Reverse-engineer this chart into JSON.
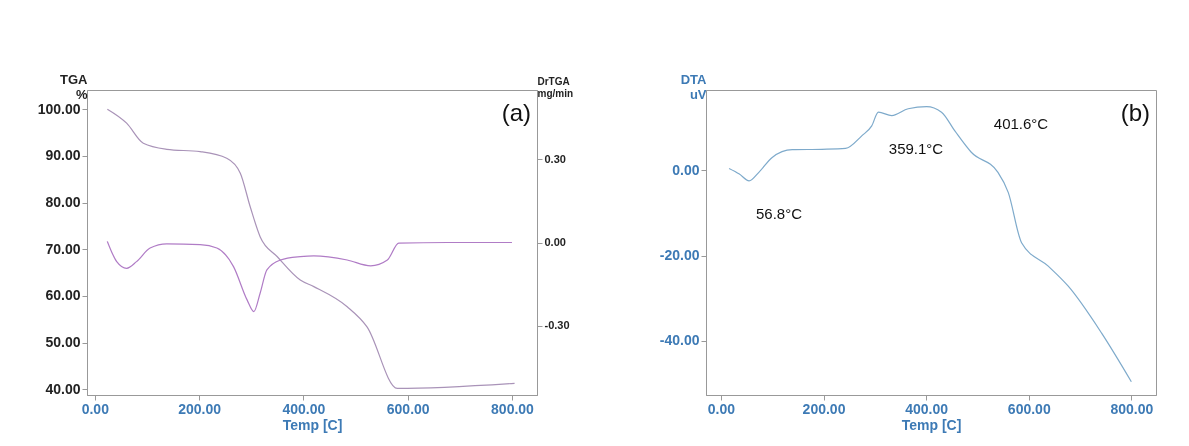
{
  "chart_data": [
    {
      "type": "line",
      "xlabel": "Temp [C]",
      "ylabel": "TGA\n%",
      "y2label": "DrTGA\nmg/min",
      "annotations": [
        "(a)"
      ],
      "xlim": [
        -15,
        848
      ],
      "xticks": [
        {
          "value": 0,
          "label": "0.00"
        },
        {
          "value": 200,
          "label": "200.00"
        },
        {
          "value": 400,
          "label": "400.00"
        },
        {
          "value": 600,
          "label": "600.00"
        },
        {
          "value": 800,
          "label": "800.00"
        }
      ],
      "ylim": [
        38.8,
        104.1
      ],
      "yticks": [
        {
          "value": 40,
          "label": "40.00"
        },
        {
          "value": 50,
          "label": "50.00"
        },
        {
          "value": 60,
          "label": "60.00"
        },
        {
          "value": 70,
          "label": "70.00"
        },
        {
          "value": 80,
          "label": "80.00"
        },
        {
          "value": 90,
          "label": "90.00"
        },
        {
          "value": 100,
          "label": "100.00"
        }
      ],
      "y2lim": [
        -0.55,
        0.55
      ],
      "y2ticks": [
        {
          "value": -0.3,
          "label": "-0.30"
        },
        {
          "value": 0,
          "label": "0.00"
        },
        {
          "value": 0.3,
          "label": "0.30"
        }
      ],
      "series": [
        {
          "color": "#a993b8",
          "x": [
            24,
            61,
            93,
            138,
            202,
            253,
            279,
            298,
            317,
            350,
            394,
            420,
            484,
            522,
            580,
            805
          ],
          "values": [
            100,
            97,
            92.7,
            91.4,
            90.9,
            89.5,
            86.3,
            79.1,
            72.7,
            68.4,
            63.4,
            62.0,
            57.7,
            53.4,
            40.2,
            41.3
          ]
        },
        {
          "color": "#b07cc6",
          "axis": "y2",
          "x": [
            24,
            42,
            61,
            80,
            106,
            138,
            202,
            234,
            266,
            292,
            305,
            317,
            330,
            356,
            394,
            420,
            484,
            529,
            561,
            583,
            676,
            800
          ],
          "values": [
            0.004,
            -0.069,
            -0.093,
            -0.069,
            -0.02,
            -0.005,
            -0.008,
            -0.02,
            -0.087,
            -0.207,
            -0.249,
            -0.183,
            -0.099,
            -0.063,
            -0.051,
            -0.048,
            -0.063,
            -0.084,
            -0.063,
            -0.002,
            0,
            0
          ]
        }
      ]
    },
    {
      "type": "line",
      "xlabel": "Temp [C]",
      "ylabel": "DTA\nuV",
      "annotations": [
        "(b)",
        "56.8°C",
        "359.1°C",
        "401.6°C"
      ],
      "xlim": [
        -29,
        848
      ],
      "xticks": [
        {
          "value": 0,
          "label": "0.00"
        },
        {
          "value": 200,
          "label": "200.00"
        },
        {
          "value": 400,
          "label": "400.00"
        },
        {
          "value": 600,
          "label": "600.00"
        },
        {
          "value": 800,
          "label": "800.00"
        }
      ],
      "ylim": [
        -52.7,
        18.8
      ],
      "yticks": [
        {
          "value": -40,
          "label": "-40.00"
        },
        {
          "value": -20,
          "label": "-20.00"
        },
        {
          "value": 0,
          "label": "0.00"
        }
      ],
      "series": [
        {
          "color": "#7eaacb",
          "x": [
            16,
            36,
            55,
            74,
            100,
            139,
            197,
            243,
            275,
            294,
            307,
            333,
            365,
            401,
            430,
            456,
            488,
            540,
            560,
            586,
            638,
            677,
            742,
            800
          ],
          "values": [
            0.4,
            -0.9,
            -2.5,
            -0.5,
            3.0,
            4.8,
            4.9,
            5.1,
            8.1,
            10.4,
            13.6,
            12.8,
            14.4,
            14.9,
            13.6,
            9.2,
            4.2,
            -0.5,
            -5.2,
            -17.0,
            -22.5,
            -27.2,
            -38.2,
            -49.6
          ]
        }
      ]
    }
  ]
}
